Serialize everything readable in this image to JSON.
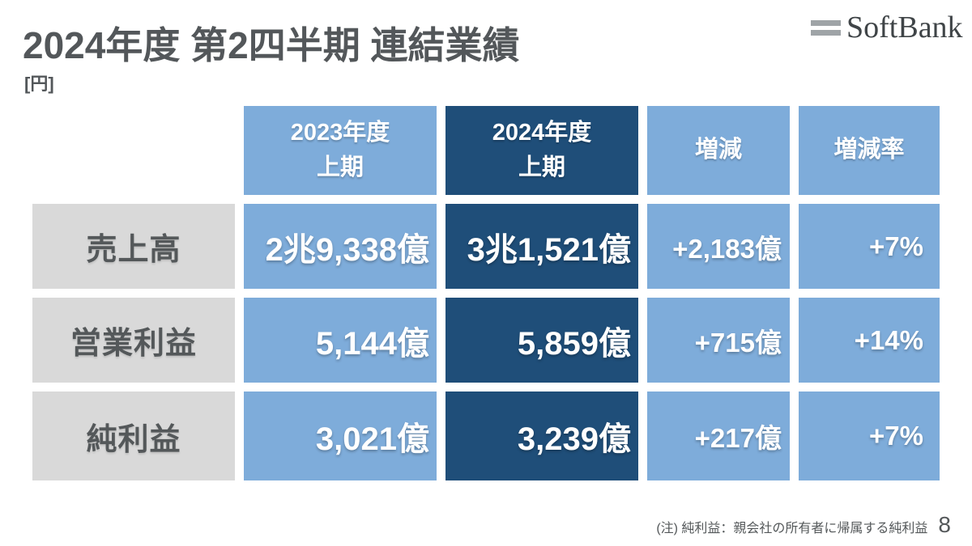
{
  "slide": {
    "title": "2024年度 第2四半期 連結業績",
    "unit_label": "[円]",
    "footnote": "(注) 純利益：親会社の所有者に帰属する純利益",
    "page_number": "8"
  },
  "logo": {
    "text": "SoftBank",
    "bar_color": "#9FA4A7",
    "text_color": "#3F4447"
  },
  "colors": {
    "light_blue": "#7EACDA",
    "dark_blue": "#1F4E79",
    "label_gray": "#D9D9D9",
    "text_gray": "#54585A",
    "cell_text": "#FFFFFF"
  },
  "table": {
    "col_headers": [
      "2023年度\n上期",
      "2024年度\n上期",
      "増減",
      "増減率"
    ],
    "rows": [
      {
        "label": "売上高",
        "fy2023": "2兆9,338億",
        "fy2024": "3兆1,521億",
        "change": "+2,183億",
        "change_rate": "+7%"
      },
      {
        "label": "営業利益",
        "fy2023": "5,144億",
        "fy2024": "5,859億",
        "change": "+715億",
        "change_rate": "+14%"
      },
      {
        "label": "純利益",
        "fy2023": "3,021億",
        "fy2024": "3,239億",
        "change": "+217億",
        "change_rate": "+7%"
      }
    ]
  },
  "chart_data": {
    "type": "table",
    "title": "2024年度 第2四半期 連結業績",
    "unit": "円",
    "columns": [
      "",
      "2023年度 上期",
      "2024年度 上期",
      "増減",
      "増減率"
    ],
    "rows": [
      [
        "売上高",
        "2兆9,338億",
        "3兆1,521億",
        "+2,183億",
        "+7%"
      ],
      [
        "営業利益",
        "5,144億",
        "5,859億",
        "+715億",
        "+14%"
      ],
      [
        "純利益",
        "3,021億",
        "3,239億",
        "+217億",
        "+7%"
      ]
    ]
  }
}
